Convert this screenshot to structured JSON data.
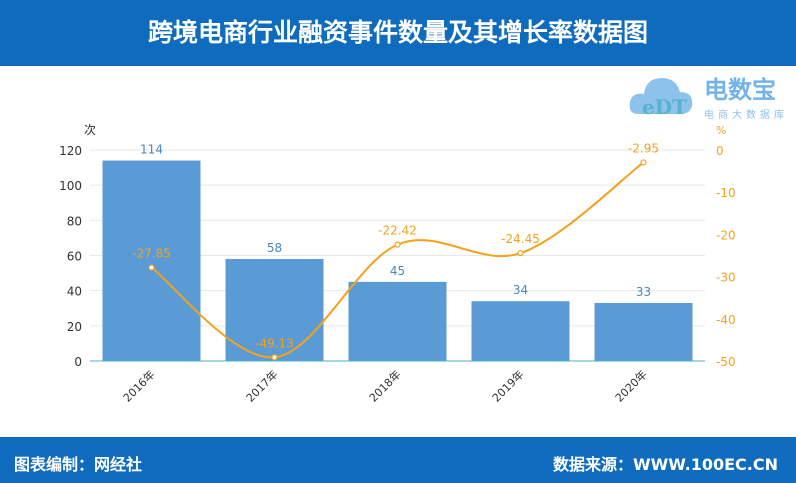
{
  "header": {
    "title": "跨境电商行业融资事件数量及其增长率数据图"
  },
  "footer": {
    "left": "图表编制：网经社",
    "right": "数据来源：WWW.100EC.CN"
  },
  "logo": {
    "text": "电数宝",
    "sub": "电商大数据库",
    "mark": "eDT"
  },
  "colors": {
    "bar": "#5b9bd5",
    "line": "#f5a21b",
    "header": "#0e6bbd"
  },
  "chart_data": {
    "type": "bar+line",
    "categories": [
      "2016年",
      "2017年",
      "2018年",
      "2019年",
      "2020年"
    ],
    "series": [
      {
        "type": "bar",
        "axis": "left",
        "values": [
          114,
          58,
          45,
          34,
          33
        ]
      },
      {
        "type": "line",
        "axis": "right",
        "values": [
          -27.85,
          -49.13,
          -22.42,
          -24.45,
          -2.95
        ]
      }
    ],
    "ylabel_left": "次",
    "ylabel_right": "%",
    "ylim_left": [
      0,
      120
    ],
    "yticks_left": [
      0,
      20,
      40,
      60,
      80,
      100,
      120
    ],
    "ylim_right": [
      -50,
      0
    ],
    "yticks_right": [
      0,
      -10,
      -20,
      -30,
      -40,
      -50
    ],
    "grid": true
  }
}
